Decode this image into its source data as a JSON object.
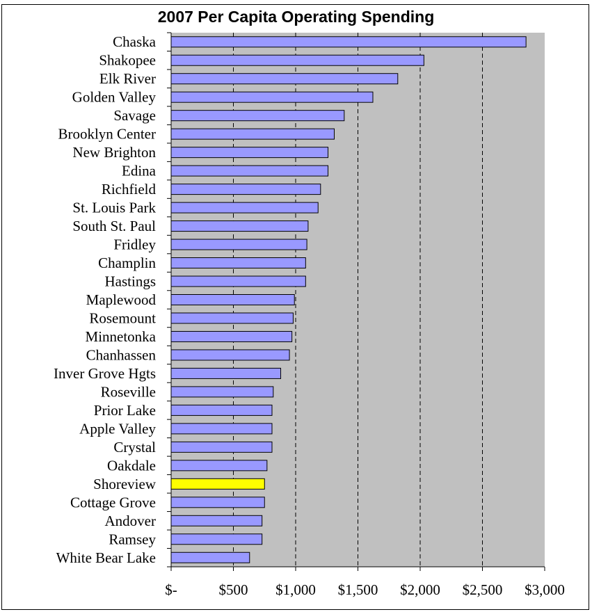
{
  "chart_data": {
    "type": "bar",
    "orientation": "horizontal",
    "title": "2007 Per Capita Operating Spending",
    "xlabel": "",
    "ylabel": "",
    "xlim": [
      0,
      3000
    ],
    "x_ticks": [
      0,
      500,
      1000,
      1500,
      2000,
      2500,
      3000
    ],
    "x_tick_labels": [
      "$-",
      "$500",
      "$1,000",
      "$1,500",
      "$2,000",
      "$2,500",
      "$3,000"
    ],
    "grid": "vertical dashed",
    "legend": "none",
    "categories": [
      "Chaska",
      "Shakopee",
      "Elk River",
      "Golden Valley",
      "Savage",
      "Brooklyn Center",
      "New Brighton",
      "Edina",
      "Richfield",
      "St. Louis Park",
      "South St. Paul",
      "Fridley",
      "Champlin",
      "Hastings",
      "Maplewood",
      "Rosemount",
      "Minnetonka",
      "Chanhassen",
      "Inver Grove Hgts",
      "Roseville",
      "Prior Lake",
      "Apple Valley",
      "Crystal",
      "Oakdale",
      "Shoreview",
      "Cottage Grove",
      "Andover",
      "Ramsey",
      "White Bear Lake"
    ],
    "values": [
      2850,
      2030,
      1820,
      1620,
      1390,
      1310,
      1260,
      1260,
      1200,
      1180,
      1100,
      1090,
      1080,
      1080,
      990,
      980,
      970,
      950,
      880,
      820,
      810,
      810,
      810,
      770,
      750,
      750,
      730,
      730,
      630
    ],
    "highlight": "Shoreview",
    "colors": {
      "bar": "#9999ff",
      "highlight_bar": "#ffff00",
      "plot_background": "#c0c0c0",
      "bar_outline": "#000000",
      "gridline": "#000000"
    }
  }
}
